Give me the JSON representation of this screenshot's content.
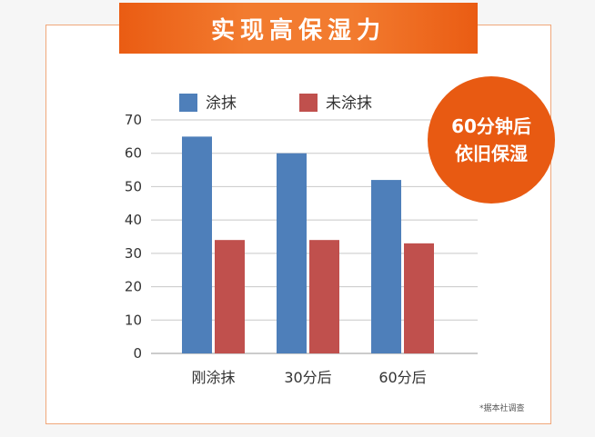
{
  "banner": {
    "title": "实现高保湿力"
  },
  "badge": {
    "line1": "60分钟后",
    "line2": "依旧保湿"
  },
  "footnote": "*据本社调查",
  "chart_data": {
    "type": "bar",
    "title": "实现高保湿力",
    "categories": [
      "刚涂抹",
      "30分后",
      "60分后"
    ],
    "series": [
      {
        "name": "涂抹",
        "values": [
          65,
          60,
          52
        ],
        "color": "#4e7fba"
      },
      {
        "name": "未涂抹",
        "values": [
          34,
          34,
          33
        ],
        "color": "#c0504d"
      }
    ],
    "yticks": [
      0,
      10,
      20,
      30,
      40,
      50,
      60,
      70
    ],
    "ylim": [
      0,
      70
    ],
    "grid": true,
    "legend": "top"
  }
}
